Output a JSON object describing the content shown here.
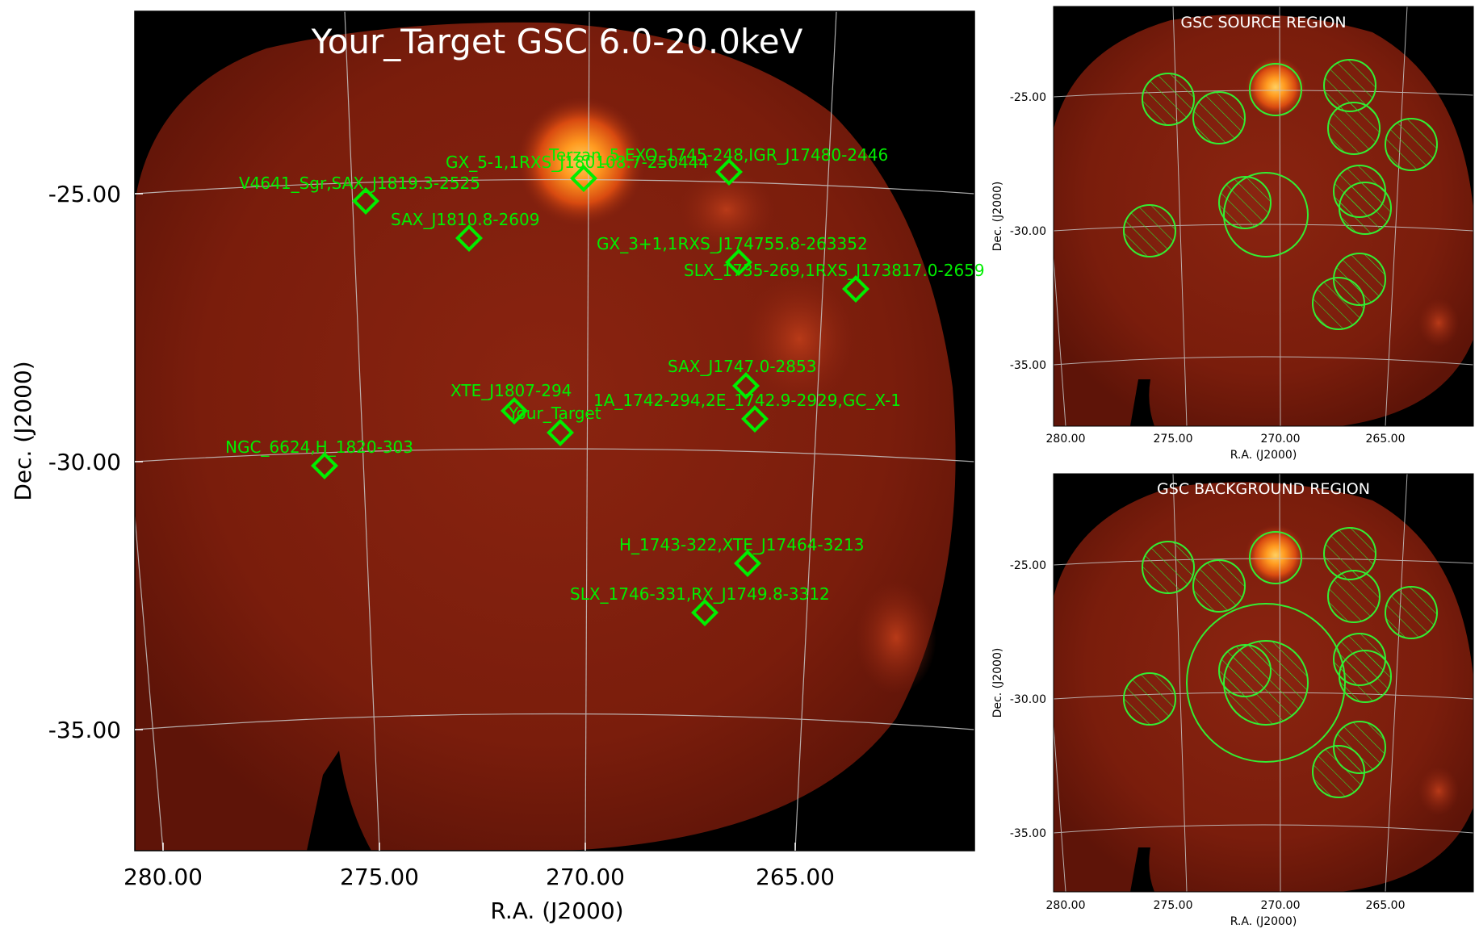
{
  "main": {
    "title": "Your_Target GSC 6.0-20.0keV",
    "xlabel": "R.A. (J2000)",
    "ylabel": "Dec. (J2000)",
    "ra_ticks": [
      "280.00",
      "275.00",
      "270.00",
      "265.00"
    ],
    "dec_ticks": [
      "-25.00",
      "-30.00",
      "-35.00"
    ],
    "sources": [
      {
        "name": "GX_5-1,1RXS_J180108.7-250444"
      },
      {
        "name": "Terzan_5,EXO_1745-248,IGR_J17480-2446"
      },
      {
        "name": "V4641_Sgr,SAX_J1819.3-2525"
      },
      {
        "name": "SAX_J1810.8-2609"
      },
      {
        "name": "GX_3+1,1RXS_J174755.8-263352"
      },
      {
        "name": "SLX_1735-269,1RXS_J173817.0-2659"
      },
      {
        "name": "SAX_J1747.0-2853"
      },
      {
        "name": "XTE_J1807-294"
      },
      {
        "name": "1A_1742-294,2E_1742.9-2929,GC_X-1"
      },
      {
        "name": "Your_Target"
      },
      {
        "name": "NGC_6624,H_1820-303"
      },
      {
        "name": "H_1743-322,XTE_J17464-3213"
      },
      {
        "name": "SLX_1746-331,RX_J1749.8-3312"
      }
    ]
  },
  "source_panel": {
    "title": "GSC SOURCE REGION",
    "xlabel": "R.A. (J2000)",
    "ylabel": "Dec. (J2000)",
    "ra_ticks": [
      "280.00",
      "275.00",
      "270.00",
      "265.00"
    ],
    "dec_ticks": [
      "-25.00",
      "-30.00",
      "-35.00"
    ]
  },
  "background_panel": {
    "title": "GSC BACKGROUND REGION",
    "xlabel": "R.A. (J2000)",
    "ylabel": "Dec. (J2000)",
    "ra_ticks": [
      "280.00",
      "275.00",
      "270.00",
      "265.00"
    ],
    "dec_ticks": [
      "-25.00",
      "-30.00",
      "-35.00"
    ]
  },
  "colors": {
    "marker": "#00ee00",
    "grid": "#c8c8c8",
    "background": "#000000"
  }
}
